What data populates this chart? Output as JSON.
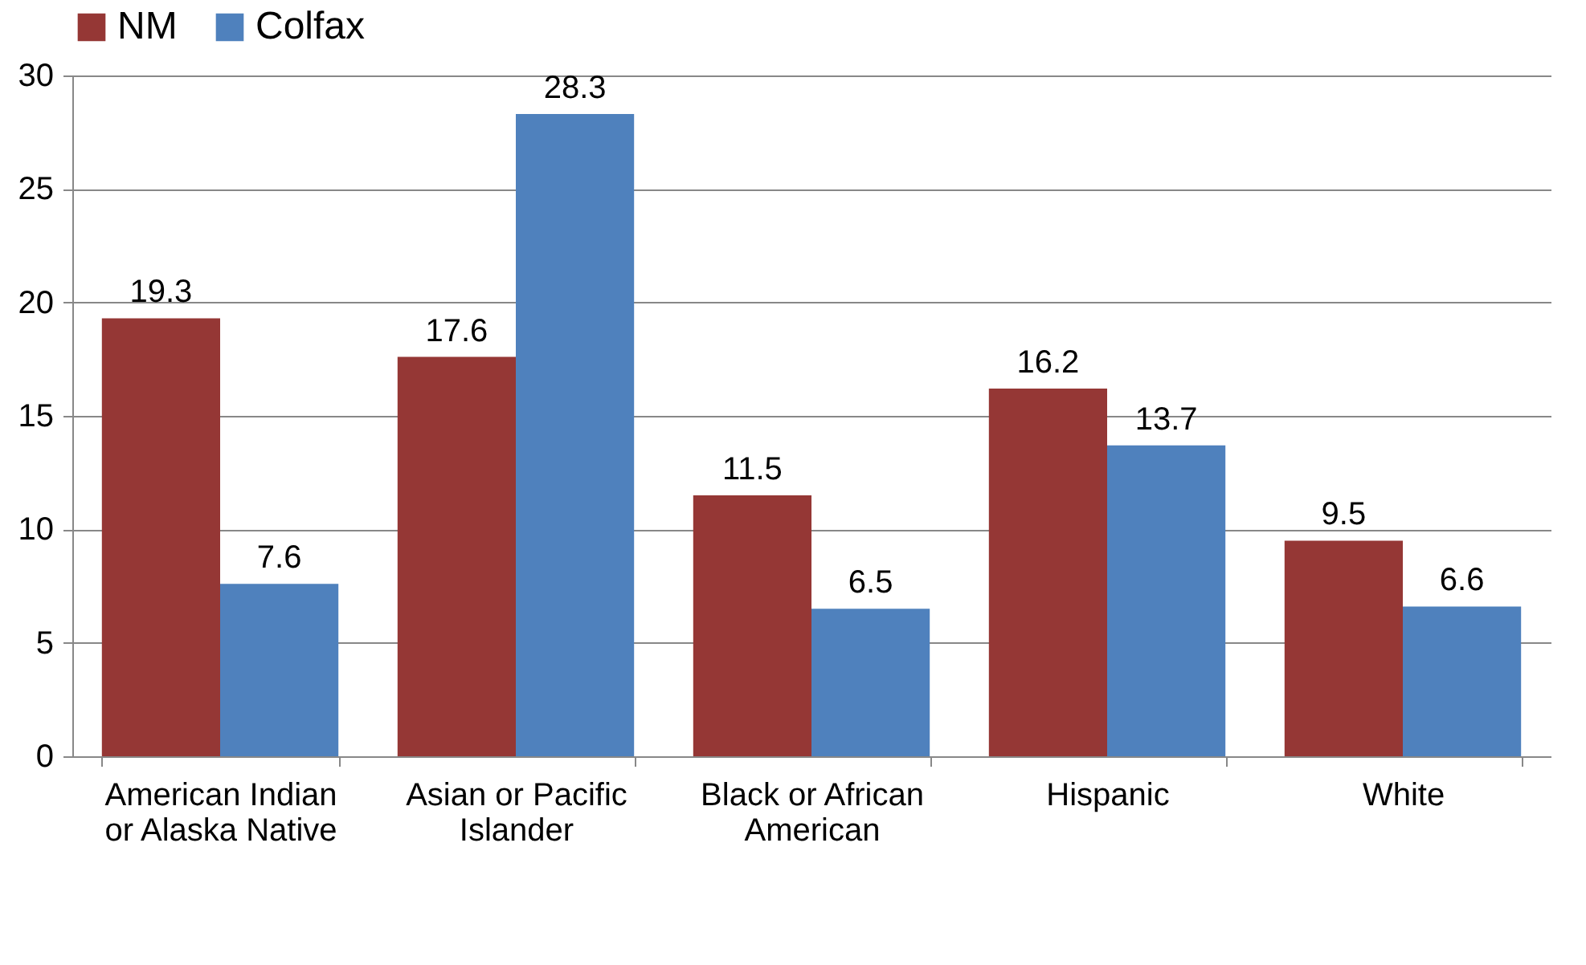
{
  "chart_data": {
    "type": "bar",
    "categories": [
      "American Indian or Alaska Native",
      "Asian or Pacific Islander",
      "Black or African American",
      "Hispanic",
      "White"
    ],
    "series": [
      {
        "name": "NM",
        "color": "#953735",
        "values": [
          19.3,
          17.6,
          11.5,
          16.2,
          9.5
        ]
      },
      {
        "name": "Colfax",
        "color": "#4f81bd",
        "values": [
          7.6,
          28.3,
          6.5,
          13.7,
          6.6
        ]
      }
    ],
    "ylim": [
      0,
      30
    ],
    "yticks": [
      0,
      5,
      10,
      15,
      20,
      25,
      30
    ],
    "grid": "y",
    "legend": "top",
    "data_labels": true
  }
}
